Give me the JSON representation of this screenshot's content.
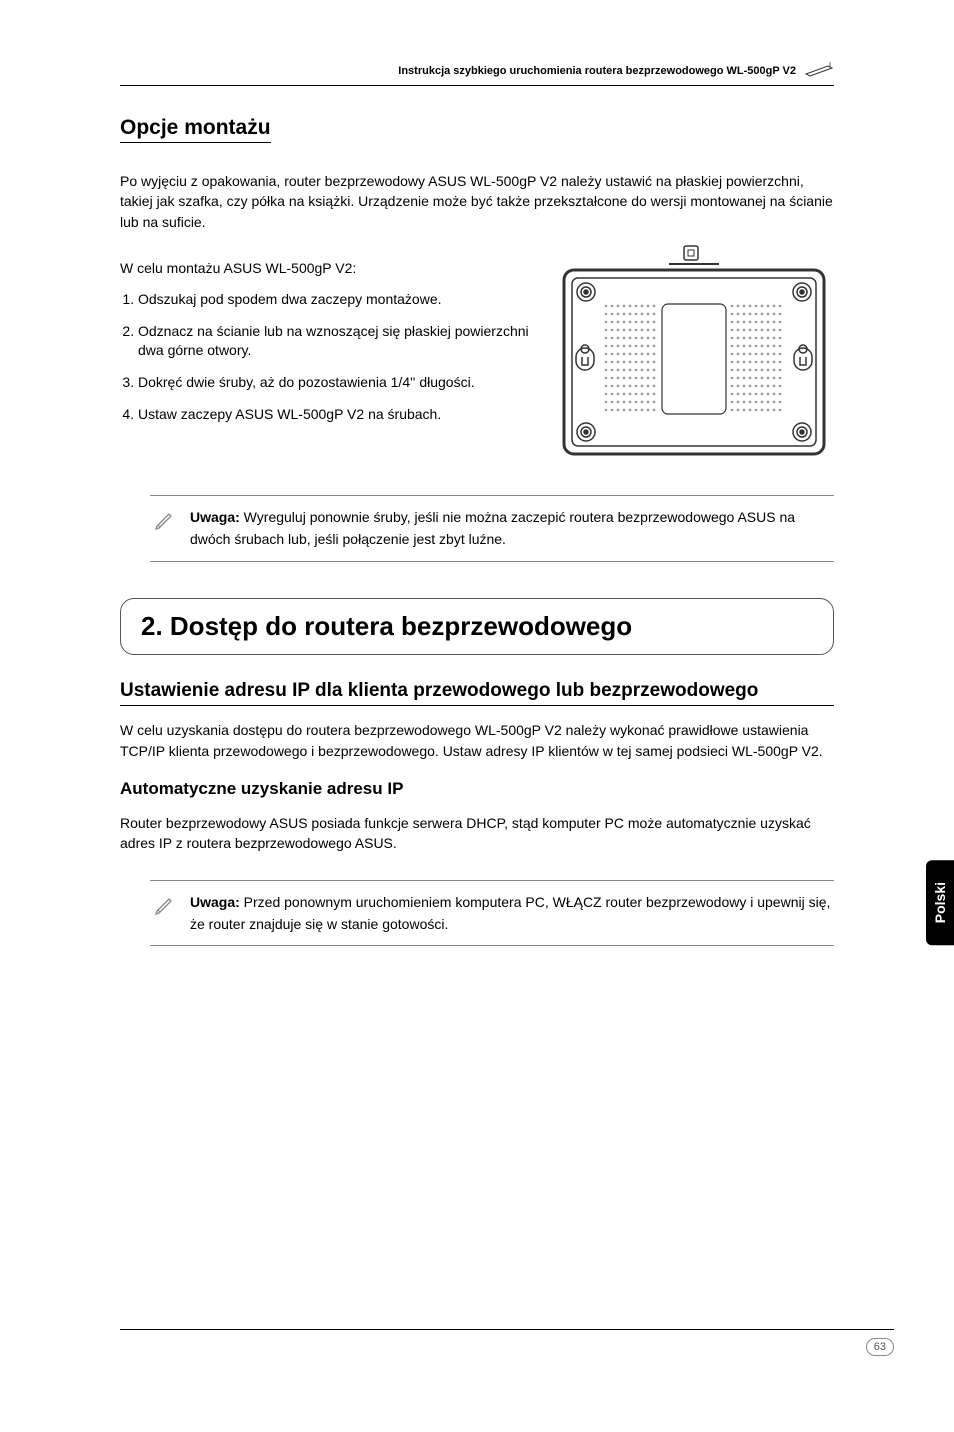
{
  "header": {
    "text": "Instrukcja szybkiego uruchomienia routera bezprzewodowego WL-500gP V2"
  },
  "sect1": {
    "title": "Opcje montażu",
    "intro": "Po wyjęciu z opakowania, router bezprzewodowy ASUS WL-500gP V2 należy ustawić na płaskiej powierzchni, takiej jak szafka, czy półka na książki. Urządzenie może być także przekształcone do wersji montowanej na ścianie lub na suficie.",
    "lead": "W celu montażu ASUS WL-500gP V2:",
    "steps": [
      "Odszukaj pod spodem dwa zaczepy montażowe.",
      "Odznacz na ścianie lub na wznoszącej się płaskiej powierzchni dwa górne otwory.",
      "Dokręć dwie śruby, aż do pozostawienia 1/4'' długości.",
      "Ustaw zaczepy ASUS WL-500gP V2 na śrubach."
    ]
  },
  "note1": {
    "bold": "Uwaga:",
    "text": " Wyreguluj ponownie śruby, jeśli nie można zaczepić routera bezprzewodowego ASUS na dwóch śrubach lub, jeśli połączenie jest zbyt luźne."
  },
  "chapter": {
    "title": "2. Dostęp do routera bezprzewodowego"
  },
  "sect2": {
    "title": "Ustawienie adresu IP dla klienta przewodowego lub bezprzewodowego",
    "body": "W celu uzyskania dostępu do routera bezprzewodowego WL-500gP V2 należy wykonać prawidłowe ustawienia TCP/IP klienta przewodowego i bezprzewodowego. Ustaw adresy IP klientów w tej samej podsieci WL-500gP V2.",
    "subtitle": "Automatyczne uzyskanie adresu IP",
    "body2": "Router bezprzewodowy ASUS posiada funkcje serwera DHCP, stąd komputer PC może automatycznie uzyskać adres IP z routera bezprzewodowego ASUS."
  },
  "note2": {
    "bold": "Uwaga:",
    "text": " Przed ponownym uruchomieniem komputera PC, WŁĄCZ router bezprzewodowy i upewnij się, że router znajduje się w stanie gotowości."
  },
  "sidetab": "Polski",
  "pagenum": "63",
  "svg": {
    "stroke": "#333333",
    "fill_light": "#cccccc",
    "dot_color": "#999999"
  }
}
